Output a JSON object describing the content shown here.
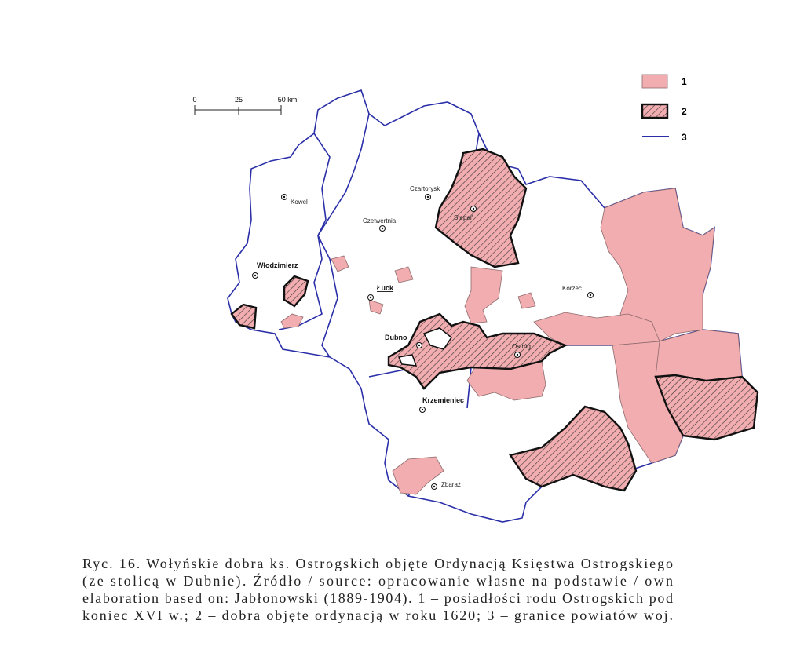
{
  "scale_bar": {
    "labels": [
      "0",
      "25",
      "50 km"
    ]
  },
  "legend": [
    {
      "label": "1"
    },
    {
      "label": "2"
    },
    {
      "label": "3"
    }
  ],
  "towns": [
    {
      "name": "Kowel"
    },
    {
      "name": "Włodzimierz"
    },
    {
      "name": "Czartorysk"
    },
    {
      "name": "Czetwertnia"
    },
    {
      "name": "Stepań"
    },
    {
      "name": "Łuck"
    },
    {
      "name": "Korzec"
    },
    {
      "name": "Dubno"
    },
    {
      "name": "Ostróg"
    },
    {
      "name": "Krzemieniec"
    },
    {
      "name": "Zbaraż"
    }
  ],
  "caption": {
    "lines": [
      "Ryc. 16. Wołyńskie dobra ks. Ostrogskich objęte Ordynacją Księstwa Ostrogskiego",
      "(ze stolicą w Dubnie). Źródło / source: opracowanie własne na podstawie / own",
      "elaboration based on: Jabłonowski (1889-1904). 1 – posiadłości rodu Ostrogskich pod",
      "koniec XVI w.; 2 – dobra objęte ordynacją w roku 1620; 3 – granice powiatów woj."
    ]
  }
}
